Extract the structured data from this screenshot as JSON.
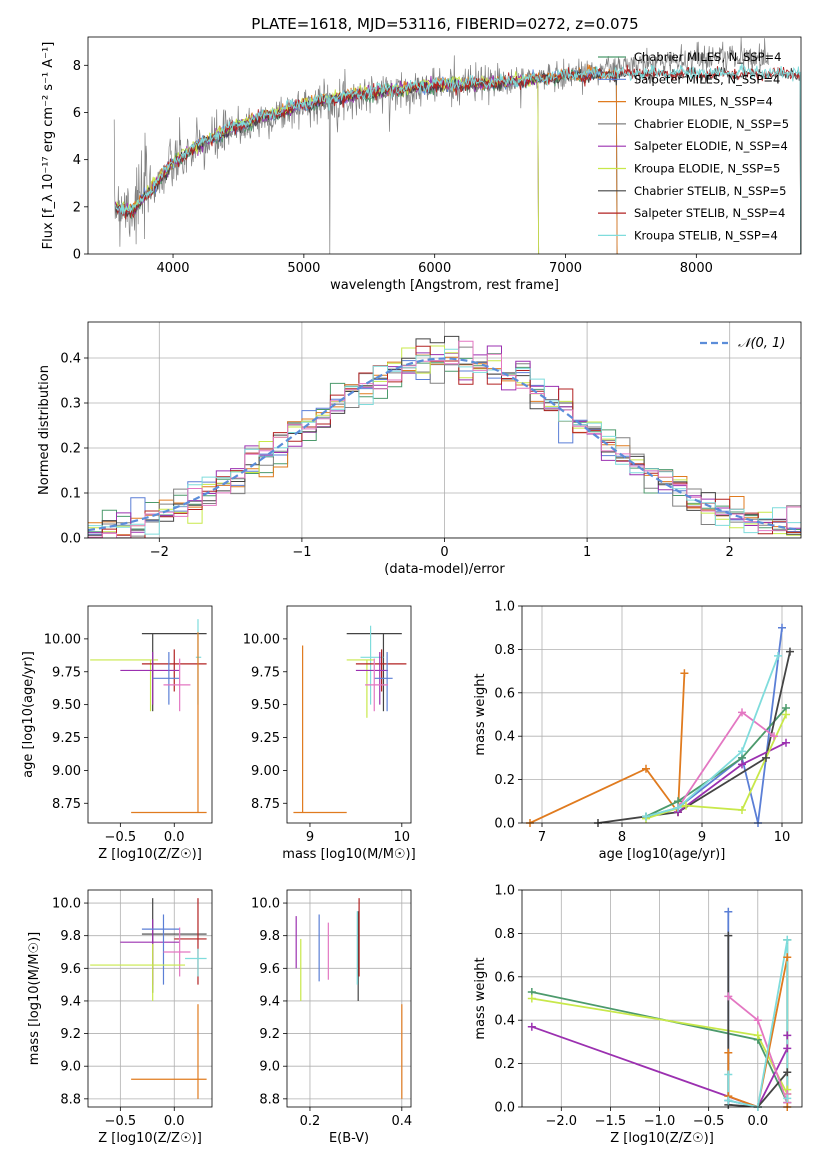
{
  "figure_title": "PLATE=1618, MJD=53116, FIBERID=0272, z=0.075",
  "chart_data": [
    {
      "id": "spectrum",
      "type": "line",
      "title": "PLATE=1618, MJD=53116, FIBERID=0272, z=0.075",
      "xlabel": "wavelength [Angstrom, rest frame]",
      "ylabel": "Flux [f_λ 10⁻¹⁷ erg cm⁻² s⁻¹ A⁻¹]",
      "xlim": [
        3350,
        8800
      ],
      "ylim": [
        0,
        9.2
      ],
      "xticks": [
        4000,
        5000,
        6000,
        7000,
        8000
      ],
      "yticks": [
        0,
        2,
        4,
        6,
        8
      ],
      "grid": false,
      "legend_position": "top-right",
      "observed_data": {
        "wavelength": [
          3550,
          3700,
          3800,
          4000,
          4200,
          4500,
          5000,
          5500,
          6000,
          6500,
          7000,
          7400,
          7800,
          8200,
          8500
        ],
        "flux": [
          2.2,
          2.0,
          2.6,
          3.8,
          4.5,
          5.3,
          6.3,
          6.8,
          7.1,
          7.3,
          7.6,
          7.9,
          8.2,
          8.4,
          8.3
        ]
      },
      "model_continuum": {
        "wavelength": [
          3550,
          3700,
          3800,
          4000,
          4200,
          4500,
          5000,
          5500,
          6000,
          6500,
          7000,
          7400
        ],
        "flux": [
          1.9,
          1.8,
          2.5,
          3.8,
          4.6,
          5.4,
          6.3,
          6.8,
          7.1,
          7.2,
          7.5,
          7.6
        ]
      },
      "series": [
        {
          "name": "Chabrier MILES, N_SSP=4",
          "color": "#4c9a6c",
          "wmax": 7400
        },
        {
          "name": "Salpeter MILES, N_SSP=4",
          "color": "#5b7fd6",
          "wmax": 7400
        },
        {
          "name": "Kroupa MILES, N_SSP=4",
          "color": "#e07b1f",
          "wmax": 7400
        },
        {
          "name": "Chabrier ELODIE, N_SSP=5",
          "color": "#808080",
          "wmax": 6800
        },
        {
          "name": "Salpeter ELODIE, N_SSP=4",
          "color": "#9b30b0",
          "wmax": 6800
        },
        {
          "name": "Kroupa ELODIE, N_SSP=5",
          "color": "#c8e84a",
          "wmax": 6800
        },
        {
          "name": "Chabrier STELIB, N_SSP=5",
          "color": "#444444",
          "wmax": 8800
        },
        {
          "name": "Salpeter STELIB, N_SSP=4",
          "color": "#b22222",
          "wmax": 8800
        },
        {
          "name": "Kroupa STELIB, N_SSP=4",
          "color": "#7fdcdc",
          "wmax": 8800
        }
      ]
    },
    {
      "id": "residuals",
      "type": "line",
      "xlabel": "(data-model)/error",
      "ylabel": "Normed distribution",
      "xlim": [
        -2.5,
        2.5
      ],
      "ylim": [
        0,
        0.48
      ],
      "xticks": [
        -2,
        -1,
        0,
        1,
        2
      ],
      "yticks": [
        0.0,
        0.1,
        0.2,
        0.3,
        0.4
      ],
      "grid": true,
      "legend_position": "top-right",
      "reference": {
        "name": "𝒩(0, 1)",
        "color": "#5b8dd9",
        "mean": 0,
        "sigma": 1
      },
      "histogram_bin_width": 0.1,
      "histogram_colors": [
        "#4c9a6c",
        "#5b7fd6",
        "#e07b1f",
        "#808080",
        "#9b30b0",
        "#c8e84a",
        "#444444",
        "#b22222",
        "#7fdcdc",
        "#e377c2"
      ]
    },
    {
      "id": "age-vs-z",
      "type": "scatter",
      "xlabel": "Z [log10(Z/Z☉)]",
      "ylabel": "age  [log10(age/yr)]",
      "xlim": [
        -0.8,
        0.35
      ],
      "ylim": [
        8.6,
        10.25
      ],
      "xticks": [
        -0.5,
        0.0
      ],
      "yticks": [
        8.75,
        9.0,
        9.25,
        9.5,
        9.75,
        10.0
      ],
      "grid": false,
      "points": [
        {
          "color": "#444444",
          "x": -0.2,
          "y": 10.04,
          "xlo": -0.3,
          "xhi": 0.3,
          "ylo": 9.45,
          "yhi": 10.04
        },
        {
          "color": "#7fdcdc",
          "x": 0.22,
          "y": 9.86,
          "xlo": 0.2,
          "xhi": 0.25,
          "ylo": 9.5,
          "yhi": 10.15
        },
        {
          "color": "#c8e84a",
          "x": -0.22,
          "y": 9.84,
          "xlo": -0.78,
          "xhi": -0.15,
          "ylo": 9.45,
          "yhi": 9.84
        },
        {
          "color": "#b22222",
          "x": 0.0,
          "y": 9.81,
          "xlo": -0.3,
          "xhi": 0.3,
          "ylo": 9.6,
          "yhi": 9.92
        },
        {
          "color": "#9b30b0",
          "x": -0.2,
          "y": 9.76,
          "xlo": -0.5,
          "xhi": 0.05,
          "ylo": 9.5,
          "yhi": 9.9
        },
        {
          "color": "#5b7fd6",
          "x": -0.05,
          "y": 9.7,
          "xlo": -0.2,
          "xhi": 0.05,
          "ylo": 9.5,
          "yhi": 9.9
        },
        {
          "color": "#e377c2",
          "x": 0.05,
          "y": 9.65,
          "xlo": -0.1,
          "xhi": 0.15,
          "ylo": 9.45,
          "yhi": 9.85
        },
        {
          "color": "#e07b1f",
          "x": 0.22,
          "y": 8.68,
          "xlo": -0.4,
          "xhi": 0.3,
          "ylo": 8.68,
          "yhi": 10.05
        }
      ]
    },
    {
      "id": "age-vs-mass",
      "type": "scatter",
      "xlabel": "mass [log10(M/M☉)]",
      "ylabel": "",
      "xlim": [
        8.75,
        10.1
      ],
      "ylim": [
        8.6,
        10.25
      ],
      "xticks": [
        9,
        10
      ],
      "yticks": [
        8.75,
        9.0,
        9.25,
        9.5,
        9.75,
        10.0
      ],
      "grid": false,
      "points": [
        {
          "color": "#444444",
          "x": 9.8,
          "y": 10.04,
          "xlo": 9.4,
          "xhi": 10.0,
          "ylo": 9.45,
          "yhi": 10.04
        },
        {
          "color": "#7fdcdc",
          "x": 9.66,
          "y": 9.86,
          "xlo": 9.55,
          "xhi": 9.8,
          "ylo": 9.5,
          "yhi": 10.1
        },
        {
          "color": "#c8e84a",
          "x": 9.62,
          "y": 9.84,
          "xlo": 9.4,
          "xhi": 9.7,
          "ylo": 9.4,
          "yhi": 9.84
        },
        {
          "color": "#b22222",
          "x": 9.78,
          "y": 9.81,
          "xlo": 9.5,
          "xhi": 10.05,
          "ylo": 9.6,
          "yhi": 9.92
        },
        {
          "color": "#9b30b0",
          "x": 9.76,
          "y": 9.76,
          "xlo": 9.5,
          "xhi": 9.85,
          "ylo": 9.5,
          "yhi": 9.9
        },
        {
          "color": "#5b7fd6",
          "x": 9.84,
          "y": 9.7,
          "xlo": 9.7,
          "xhi": 9.9,
          "ylo": 9.45,
          "yhi": 9.9
        },
        {
          "color": "#e377c2",
          "x": 9.7,
          "y": 9.65,
          "xlo": 9.6,
          "xhi": 9.85,
          "ylo": 9.45,
          "yhi": 9.85
        },
        {
          "color": "#e07b1f",
          "x": 8.92,
          "y": 8.68,
          "xlo": 8.82,
          "xhi": 9.4,
          "ylo": 8.68,
          "yhi": 9.95
        }
      ]
    },
    {
      "id": "weight-vs-age",
      "type": "line",
      "xlabel": "age  [log10(age/yr)]",
      "ylabel": "mass weight",
      "xlim": [
        6.75,
        10.25
      ],
      "ylim": [
        0,
        1.0
      ],
      "xticks": [
        7,
        8,
        9,
        10
      ],
      "yticks": [
        0.0,
        0.2,
        0.4,
        0.6,
        0.8,
        1.0
      ],
      "grid": true,
      "series": [
        {
          "color": "#e07b1f",
          "x": [
            6.85,
            8.3,
            8.7,
            8.78
          ],
          "y": [
            0.0,
            0.25,
            0.05,
            0.69
          ]
        },
        {
          "color": "#5b7fd6",
          "x": [
            8.3,
            8.7,
            9.5,
            9.7,
            10.0
          ],
          "y": [
            0.03,
            0.07,
            0.3,
            0.0,
            0.9
          ]
        },
        {
          "color": "#4c9a6c",
          "x": [
            8.3,
            8.7,
            9.5,
            10.05
          ],
          "y": [
            0.03,
            0.1,
            0.3,
            0.53
          ]
        },
        {
          "color": "#444444",
          "x": [
            7.7,
            8.7,
            9.8,
            10.1
          ],
          "y": [
            0.0,
            0.05,
            0.3,
            0.79
          ]
        },
        {
          "color": "#e377c2",
          "x": [
            8.7,
            9.5,
            9.9
          ],
          "y": [
            0.07,
            0.51,
            0.4
          ]
        },
        {
          "color": "#9b30b0",
          "x": [
            8.7,
            9.5,
            10.05
          ],
          "y": [
            0.05,
            0.27,
            0.37
          ]
        },
        {
          "color": "#c8e84a",
          "x": [
            8.3,
            8.8,
            9.5,
            10.05
          ],
          "y": [
            0.02,
            0.08,
            0.06,
            0.5
          ]
        },
        {
          "color": "#7fdcdc",
          "x": [
            8.3,
            8.7,
            9.5,
            9.95
          ],
          "y": [
            0.03,
            0.07,
            0.33,
            0.77
          ]
        }
      ]
    },
    {
      "id": "mass-vs-z",
      "type": "scatter",
      "xlabel": "Z [log10(Z/Z☉)]",
      "ylabel": "mass [log10(M/M☉)]",
      "xlim": [
        -0.8,
        0.35
      ],
      "ylim": [
        8.75,
        10.08
      ],
      "xticks": [
        -0.5,
        0.0
      ],
      "yticks": [
        8.8,
        9.0,
        9.2,
        9.4,
        9.6,
        9.8,
        10.0
      ],
      "grid": true,
      "points": [
        {
          "color": "#444444",
          "x": -0.2,
          "y": 9.81,
          "xlo": -0.3,
          "xhi": 0.3,
          "ylo": 9.45,
          "yhi": 10.03
        },
        {
          "color": "#b22222",
          "x": 0.22,
          "y": 9.78,
          "xlo": 0.0,
          "xhi": 0.3,
          "ylo": 9.5,
          "yhi": 10.03
        },
        {
          "color": "#9b30b0",
          "x": -0.2,
          "y": 9.76,
          "xlo": -0.5,
          "xhi": 0.05,
          "ylo": 9.5,
          "yhi": 9.9
        },
        {
          "color": "#5b7fd6",
          "x": -0.1,
          "y": 9.84,
          "xlo": -0.3,
          "xhi": 0.05,
          "ylo": 9.5,
          "yhi": 9.93
        },
        {
          "color": "#e377c2",
          "x": 0.05,
          "y": 9.7,
          "xlo": -0.1,
          "xhi": 0.15,
          "ylo": 9.55,
          "yhi": 9.85
        },
        {
          "color": "#7fdcdc",
          "x": 0.22,
          "y": 9.66,
          "xlo": 0.1,
          "xhi": 0.3,
          "ylo": 9.55,
          "yhi": 9.72
        },
        {
          "color": "#c8e84a",
          "x": -0.2,
          "y": 9.62,
          "xlo": -0.78,
          "xhi": 0.1,
          "ylo": 9.4,
          "yhi": 9.75
        },
        {
          "color": "#e07b1f",
          "x": 0.22,
          "y": 8.92,
          "xlo": -0.4,
          "xhi": 0.3,
          "ylo": 8.8,
          "yhi": 9.38
        }
      ]
    },
    {
      "id": "mass-vs-ebv",
      "type": "scatter",
      "xlabel": "E(B-V)",
      "ylabel": "",
      "xlim": [
        0.15,
        0.42
      ],
      "ylim": [
        8.75,
        10.08
      ],
      "xticks": [
        0.2,
        0.4
      ],
      "yticks": [
        8.8,
        9.0,
        9.2,
        9.4,
        9.6,
        9.8,
        10.0
      ],
      "grid": true,
      "bars": [
        {
          "color": "#9b30b0",
          "x": 0.17,
          "ylo": 9.6,
          "yhi": 9.92
        },
        {
          "color": "#c8e84a",
          "x": 0.18,
          "ylo": 9.4,
          "yhi": 9.78
        },
        {
          "color": "#5b7fd6",
          "x": 0.22,
          "ylo": 9.52,
          "yhi": 9.93
        },
        {
          "color": "#e377c2",
          "x": 0.24,
          "ylo": 9.53,
          "yhi": 9.88
        },
        {
          "color": "#444444",
          "x": 0.305,
          "ylo": 9.4,
          "yhi": 9.95
        },
        {
          "color": "#b22222",
          "x": 0.307,
          "ylo": 9.55,
          "yhi": 10.03
        },
        {
          "color": "#7fdcdc",
          "x": 0.303,
          "ylo": 9.5,
          "yhi": 9.95
        },
        {
          "color": "#e07b1f",
          "x": 0.4,
          "ylo": 8.8,
          "yhi": 9.38
        }
      ]
    },
    {
      "id": "weight-vs-z",
      "type": "line",
      "xlabel": "Z [log10(Z/Z☉)]",
      "ylabel": "mass weight",
      "xlim": [
        -2.4,
        0.45
      ],
      "ylim": [
        0,
        1.0
      ],
      "xticks": [
        -2.0,
        -1.5,
        -1.0,
        -0.5,
        0.0
      ],
      "yticks": [
        0.0,
        0.2,
        0.4,
        0.6,
        0.8,
        1.0
      ],
      "grid": true,
      "series": [
        {
          "color": "#4c9a6c",
          "x": [
            -2.3,
            0.0,
            0.3,
            0.3
          ],
          "y": [
            0.53,
            0.31,
            0.02,
            0.77
          ]
        },
        {
          "color": "#c8e84a",
          "x": [
            -2.3,
            0.0,
            0.3,
            0.3
          ],
          "y": [
            0.5,
            0.33,
            0.06,
            0.08
          ]
        },
        {
          "color": "#9b30b0",
          "x": [
            -2.3,
            0.0,
            0.3,
            0.3
          ],
          "y": [
            0.37,
            0.0,
            0.27,
            0.33
          ]
        },
        {
          "color": "#5b7fd6",
          "x": [
            -0.3,
            -0.3,
            0.0,
            0.0
          ],
          "y": [
            0.9,
            0.03,
            0.0,
            0.0
          ]
        },
        {
          "color": "#444444",
          "x": [
            -0.3,
            -0.3,
            0.0,
            0.3
          ],
          "y": [
            0.79,
            0.01,
            0.0,
            0.16
          ]
        },
        {
          "color": "#e377c2",
          "x": [
            -0.3,
            0.0,
            0.3,
            0.3
          ],
          "y": [
            0.51,
            0.4,
            0.02,
            0.06
          ]
        },
        {
          "color": "#e07b1f",
          "x": [
            -0.3,
            -0.3,
            0.0,
            0.3,
            0.3
          ],
          "y": [
            0.25,
            0.05,
            0.0,
            0.69,
            0.0
          ]
        },
        {
          "color": "#7fdcdc",
          "x": [
            -0.3,
            -0.3,
            0.0,
            0.3,
            0.3
          ],
          "y": [
            0.15,
            0.03,
            0.0,
            0.77,
            0.04
          ]
        }
      ]
    }
  ]
}
